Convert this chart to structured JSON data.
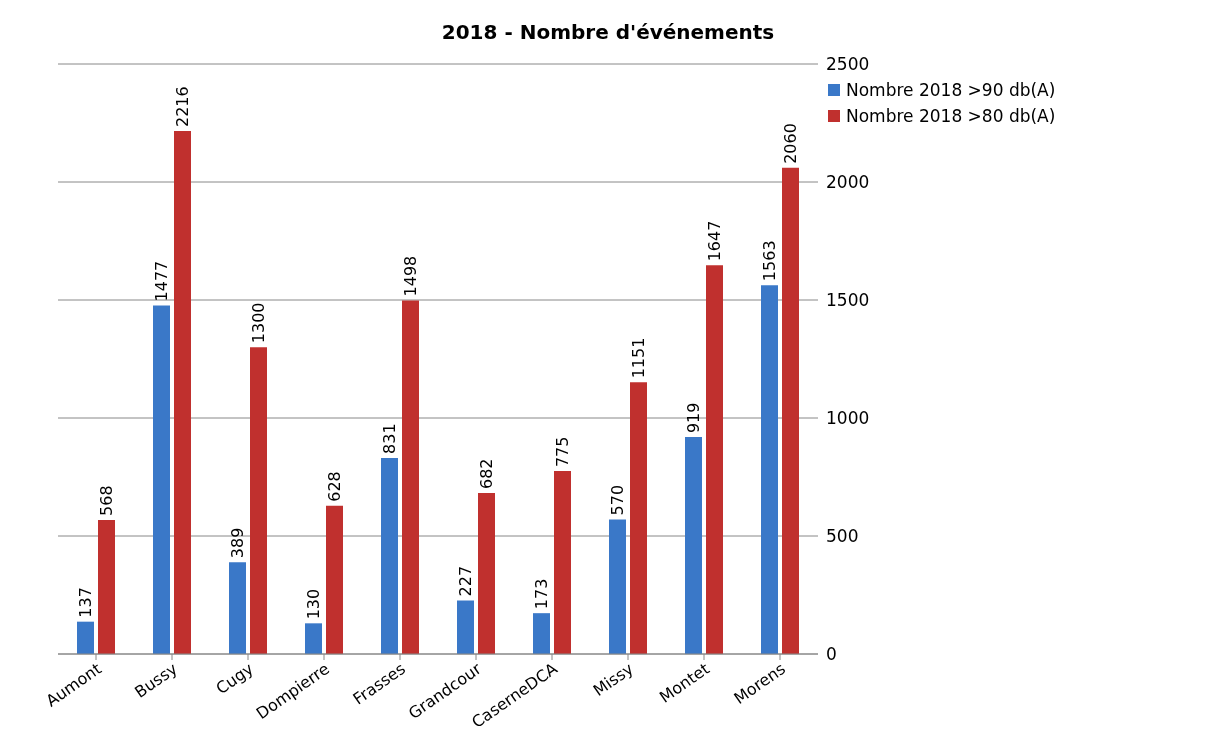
{
  "chart_data": {
    "type": "bar",
    "title": "2018 - Nombre d'événements",
    "categories": [
      "Aumont",
      "Bussy",
      "Cugy",
      "Dompierre",
      "Frasses",
      "Grandcour",
      "CaserneDCA",
      "Missy",
      "Montet",
      "Morens"
    ],
    "series": [
      {
        "name": "Nombre 2018 >90 db(A)",
        "color": "#3a78c8",
        "values": [
          137,
          1477,
          389,
          130,
          831,
          227,
          173,
          570,
          919,
          1563
        ]
      },
      {
        "name": "Nombre 2018 >80 db(A)",
        "color": "#c0302e",
        "values": [
          568,
          2216,
          1300,
          628,
          1498,
          682,
          775,
          1151,
          1647,
          2060
        ]
      }
    ],
    "ylim": [
      0,
      2500
    ],
    "yticks": [
      0,
      500,
      1000,
      1500,
      2000,
      2500
    ],
    "grid": "y",
    "legend": "top right",
    "data_labels": true
  }
}
